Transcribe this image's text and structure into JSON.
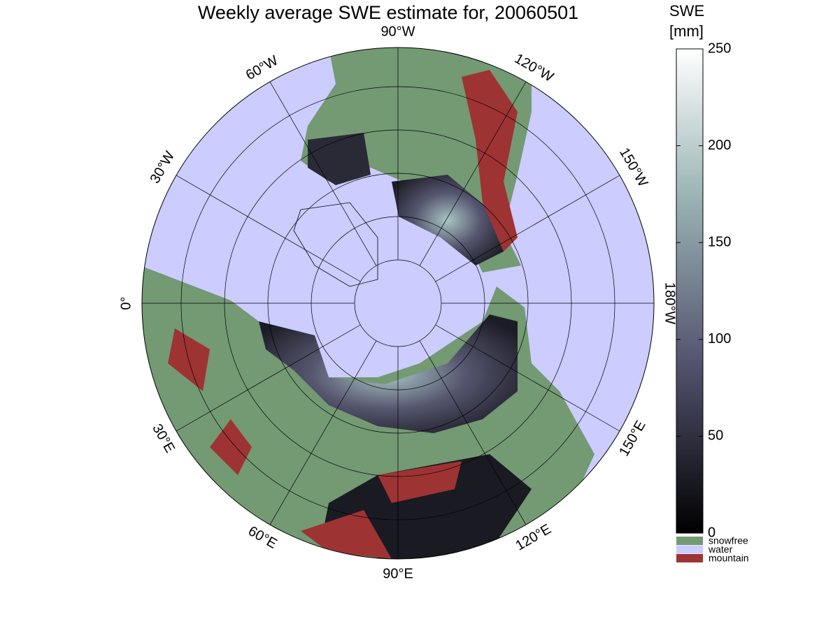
{
  "title": "Weekly average SWE estimate for, 20060501",
  "map": {
    "longitude_labels": [
      "90°W",
      "120°W",
      "150°W",
      "180°W",
      "150°E",
      "120°E",
      "90°E",
      "60°E",
      "30°E",
      "0°",
      "30°W",
      "60°W"
    ]
  },
  "colorbar": {
    "label": [
      "SWE",
      "[mm]"
    ],
    "lim": [
      0,
      250
    ],
    "ticks": [
      0,
      50,
      100,
      150,
      200,
      250
    ]
  },
  "legend": [
    {
      "name": "snowfree",
      "color": "#739a73"
    },
    {
      "name": "water",
      "color": "#ccccff"
    },
    {
      "name": "mountain",
      "color": "#9e3333"
    }
  ]
}
